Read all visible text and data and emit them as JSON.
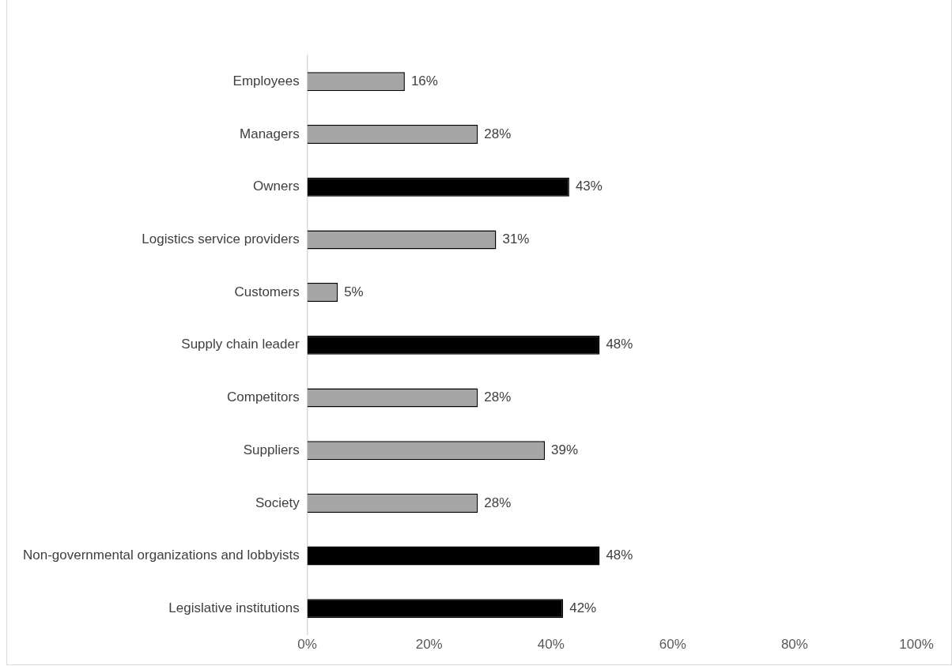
{
  "chart_data": {
    "type": "bar",
    "orientation": "horizontal",
    "categories": [
      "Employees",
      "Managers",
      "Owners",
      "Logistics service providers",
      "Customers",
      "Supply chain leader",
      "Competitors",
      "Suppliers",
      "Society",
      "Non-governmental organizations and lobbyists",
      "Legislative institutions"
    ],
    "values": [
      16,
      28,
      43,
      31,
      5,
      48,
      28,
      39,
      28,
      48,
      42
    ],
    "colors": [
      "#a6a6a6",
      "#a6a6a6",
      "#000000",
      "#a6a6a6",
      "#a6a6a6",
      "#000000",
      "#a6a6a6",
      "#a6a6a6",
      "#a6a6a6",
      "#000000",
      "#000000"
    ],
    "value_labels": [
      "16%",
      "28%",
      "43%",
      "31%",
      "5%",
      "48%",
      "28%",
      "39%",
      "28%",
      "48%",
      "42%"
    ],
    "xlim": [
      0,
      100
    ],
    "xticks": [
      {
        "value": 0,
        "label": "0%"
      },
      {
        "value": 20,
        "label": "20%"
      },
      {
        "value": 40,
        "label": "40%"
      },
      {
        "value": 60,
        "label": "60%"
      },
      {
        "value": 80,
        "label": "80%"
      },
      {
        "value": 100,
        "label": "100%"
      }
    ],
    "grid": false,
    "legend": false
  }
}
